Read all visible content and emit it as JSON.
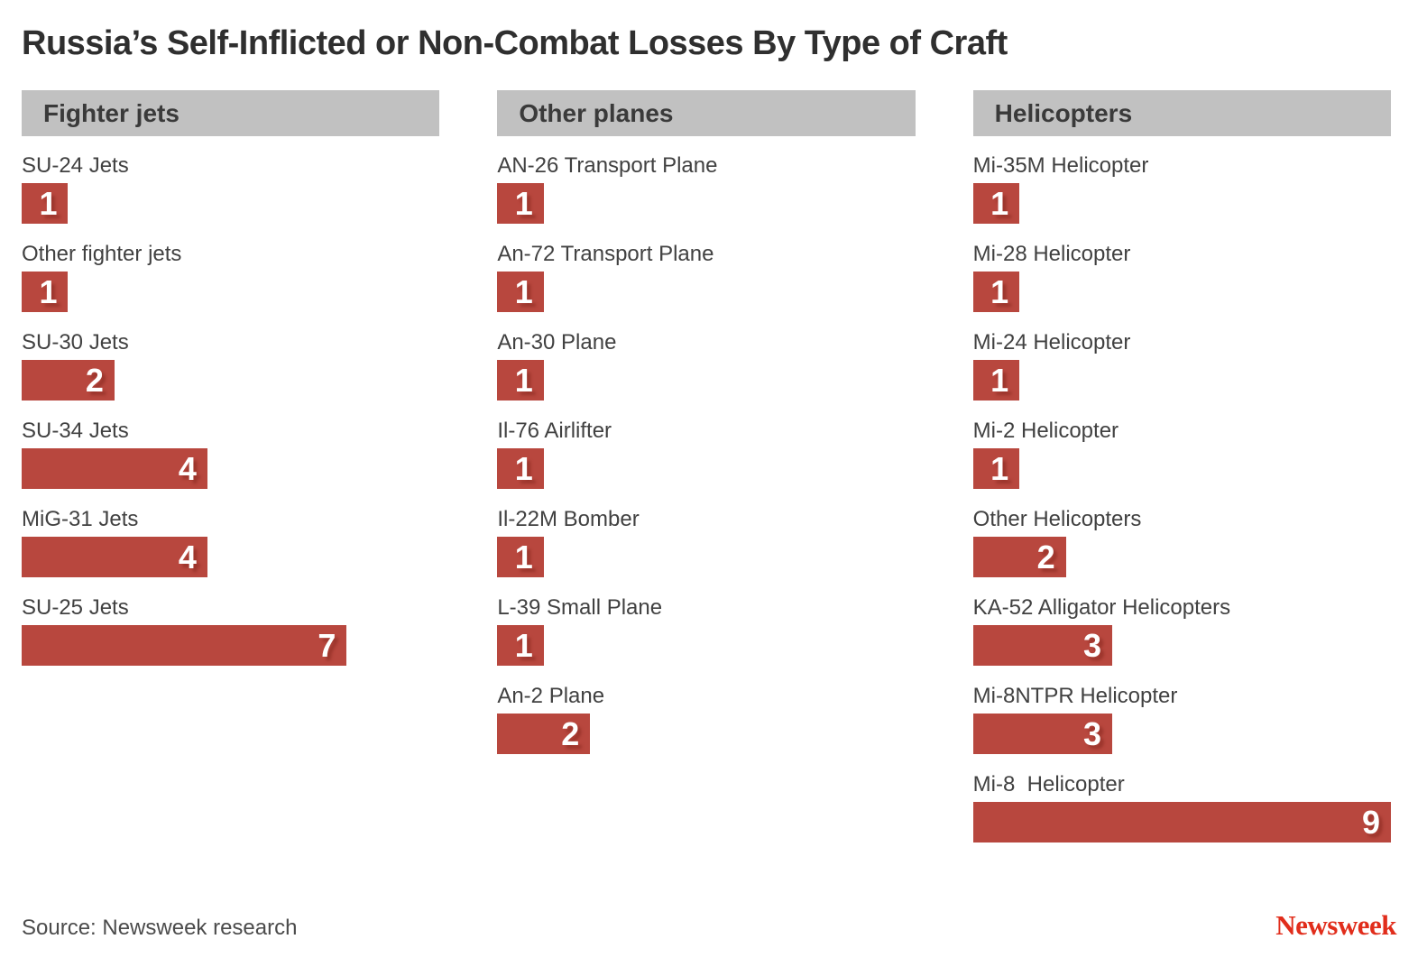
{
  "title": "Russia’s Self-Inflicted or Non-Combat Losses By Type of Craft",
  "source": "Source: Newsweek research",
  "brand": "Newsweek",
  "colors": {
    "bar": "#b8473e",
    "bar_shadow": "#9b352c",
    "header_bg": "#c1c1c1",
    "brand_red": "#e12d1b",
    "title_text": "#2f2f2f",
    "label_text": "#414141"
  },
  "chart_data": {
    "type": "bar",
    "orientation": "horizontal",
    "title": "Russia’s Self-Inflicted or Non-Combat Losses By Type of Craft",
    "value_axis_max": 9,
    "grid": false,
    "legend": false,
    "groups": [
      {
        "label": "Fighter jets",
        "items": [
          {
            "label": "SU-24 Jets",
            "value": 1
          },
          {
            "label": "Other fighter jets",
            "value": 1
          },
          {
            "label": "SU-30 Jets",
            "value": 2
          },
          {
            "label": "SU-34 Jets",
            "value": 4
          },
          {
            "label": "MiG-31 Jets",
            "value": 4
          },
          {
            "label": "SU-25 Jets",
            "value": 7
          }
        ]
      },
      {
        "label": "Other planes",
        "items": [
          {
            "label": "AN-26 Transport Plane",
            "value": 1
          },
          {
            "label": "An-72 Transport Plane",
            "value": 1
          },
          {
            "label": "An-30 Plane",
            "value": 1
          },
          {
            "label": "Il-76 Airlifter",
            "value": 1
          },
          {
            "label": "Il-22M Bomber",
            "value": 1
          },
          {
            "label": "L-39 Small Plane",
            "value": 1
          },
          {
            "label": "An-2 Plane",
            "value": 2
          }
        ]
      },
      {
        "label": "Helicopters",
        "items": [
          {
            "label": "Mi-35M Helicopter",
            "value": 1
          },
          {
            "label": "Mi-28 Helicopter",
            "value": 1
          },
          {
            "label": "Mi-24 Helicopter",
            "value": 1
          },
          {
            "label": "Mi-2 Helicopter",
            "value": 1
          },
          {
            "label": "Other Helicopters",
            "value": 2
          },
          {
            "label": "KA-52 Alligator Helicopters",
            "value": 3
          },
          {
            "label": "Mi-8NTPR Helicopter",
            "value": 3
          },
          {
            "label": "Mi-8  Helicopter",
            "value": 9
          }
        ]
      }
    ]
  }
}
